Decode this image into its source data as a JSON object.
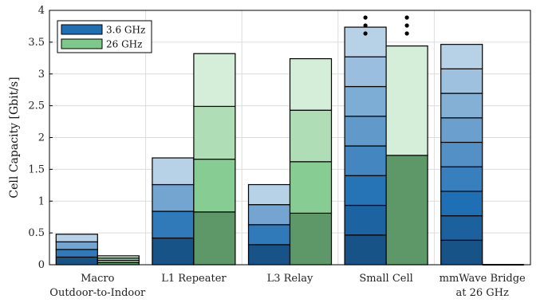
{
  "chart_data": {
    "type": "bar",
    "stacked": true,
    "ylabel": "Cell Capacity [Gbit/s]",
    "ylim": [
      0,
      4
    ],
    "yticks": [
      "0",
      "0.5",
      "1",
      "1.5",
      "2",
      "2.5",
      "3",
      "3.5",
      "4"
    ],
    "grid": true,
    "legend_position": "top-left",
    "categories": [
      [
        "Macro",
        "Outdoor-to-Indoor"
      ],
      [
        "L1 Repeater"
      ],
      [
        "L3 Relay"
      ],
      [
        "Small Cell"
      ],
      [
        "mmWave Bridge",
        "at 26 GHz"
      ]
    ],
    "series": [
      {
        "name": "3.6 GHz",
        "color": "#1f6fb4",
        "stacks": [
          [
            0.12,
            0.12,
            0.12,
            0.12
          ],
          [
            0.42,
            0.42,
            0.42,
            0.42
          ],
          [
            0.315,
            0.315,
            0.315,
            0.315
          ],
          [
            0.467,
            0.467,
            0.467,
            0.467,
            0.467,
            0.467,
            0.467,
            0.467
          ],
          [
            0.385,
            0.385,
            0.385,
            0.385,
            0.385,
            0.385,
            0.385,
            0.385,
            0.385
          ]
        ],
        "continues_above_axis": [
          false,
          false,
          false,
          true,
          false
        ]
      },
      {
        "name": "26 GHz",
        "color": "#7dc98a",
        "stacks": [
          [
            0.035,
            0.035,
            0.035,
            0.035
          ],
          [
            0.83,
            0.83,
            0.83,
            0.83
          ],
          [
            0.81,
            0.81,
            0.81,
            0.81
          ],
          [
            1.72,
            1.72
          ],
          []
        ],
        "continues_above_axis": [
          false,
          false,
          false,
          true,
          false
        ]
      }
    ]
  }
}
